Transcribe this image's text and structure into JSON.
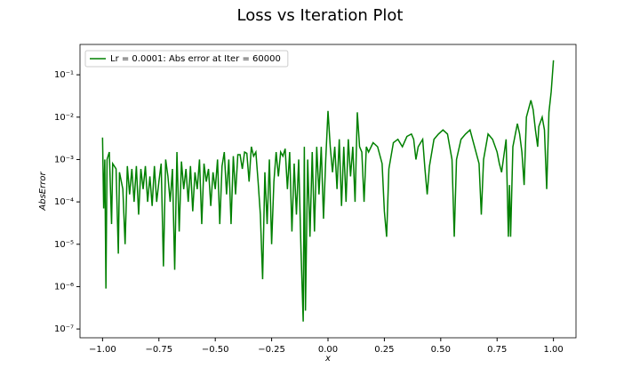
{
  "chart_data": {
    "type": "line",
    "title": "Loss vs Iteration Plot",
    "xlabel": "x",
    "ylabel": "AbsError",
    "log_y": true,
    "legend": "upper left",
    "xlim": [
      -1.1,
      1.1
    ],
    "ylim": [
      6.2e-08,
      0.52
    ],
    "xticks": [
      {
        "value": -1,
        "label": "−1.00"
      },
      {
        "value": -0.75,
        "label": "−0.75"
      },
      {
        "value": -0.5,
        "label": "−0.50"
      },
      {
        "value": -0.25,
        "label": "−0.25"
      },
      {
        "value": 0,
        "label": "0.00"
      },
      {
        "value": 0.25,
        "label": "0.25"
      },
      {
        "value": 0.5,
        "label": "0.50"
      },
      {
        "value": 0.75,
        "label": "0.75"
      },
      {
        "value": 1,
        "label": "1.00"
      }
    ],
    "yticks": [
      {
        "value": 1e-07,
        "label": "10⁻⁷"
      },
      {
        "value": 1e-06,
        "label": "10⁻⁶"
      },
      {
        "value": 1e-05,
        "label": "10⁻⁵"
      },
      {
        "value": 0.0001,
        "label": "10⁻⁴"
      },
      {
        "value": 0.001,
        "label": "10⁻³"
      },
      {
        "value": 0.01,
        "label": "10⁻²"
      },
      {
        "value": 0.1,
        "label": "10⁻¹"
      }
    ],
    "x": [
      -1.0,
      -0.995,
      -0.99,
      -0.985,
      -0.98,
      -0.97,
      -0.96,
      -0.955,
      -0.94,
      -0.93,
      -0.925,
      -0.91,
      -0.9,
      -0.89,
      -0.88,
      -0.87,
      -0.86,
      -0.85,
      -0.84,
      -0.83,
      -0.82,
      -0.81,
      -0.8,
      -0.79,
      -0.78,
      -0.77,
      -0.76,
      -0.75,
      -0.74,
      -0.73,
      -0.72,
      -0.71,
      -0.7,
      -0.69,
      -0.68,
      -0.67,
      -0.66,
      -0.65,
      -0.64,
      -0.63,
      -0.62,
      -0.61,
      -0.6,
      -0.59,
      -0.58,
      -0.57,
      -0.56,
      -0.55,
      -0.54,
      -0.53,
      -0.52,
      -0.51,
      -0.5,
      -0.49,
      -0.48,
      -0.47,
      -0.46,
      -0.45,
      -0.44,
      -0.43,
      -0.42,
      -0.41,
      -0.4,
      -0.39,
      -0.38,
      -0.37,
      -0.36,
      -0.35,
      -0.34,
      -0.33,
      -0.32,
      -0.31,
      -0.3,
      -0.29,
      -0.28,
      -0.27,
      -0.26,
      -0.25,
      -0.24,
      -0.23,
      -0.22,
      -0.21,
      -0.2,
      -0.19,
      -0.18,
      -0.17,
      -0.16,
      -0.15,
      -0.14,
      -0.13,
      -0.12,
      -0.11,
      -0.105,
      -0.1,
      -0.09,
      -0.08,
      -0.07,
      -0.06,
      -0.05,
      -0.04,
      -0.03,
      -0.02,
      -0.01,
      0.0,
      0.01,
      0.02,
      0.03,
      0.04,
      0.05,
      0.06,
      0.07,
      0.08,
      0.09,
      0.1,
      0.11,
      0.12,
      0.13,
      0.14,
      0.15,
      0.16,
      0.17,
      0.18,
      0.2,
      0.22,
      0.24,
      0.25,
      0.26,
      0.27,
      0.29,
      0.31,
      0.33,
      0.35,
      0.37,
      0.38,
      0.39,
      0.4,
      0.42,
      0.43,
      0.44,
      0.45,
      0.47,
      0.49,
      0.51,
      0.53,
      0.55,
      0.56,
      0.57,
      0.59,
      0.61,
      0.63,
      0.65,
      0.67,
      0.68,
      0.69,
      0.71,
      0.73,
      0.75,
      0.76,
      0.77,
      0.79,
      0.8,
      0.805,
      0.81,
      0.82,
      0.84,
      0.85,
      0.86,
      0.87,
      0.88,
      0.9,
      0.91,
      0.92,
      0.93,
      0.935,
      0.95,
      0.96,
      0.97,
      0.98,
      0.99,
      1.0
    ],
    "series": [
      {
        "name": "Lr = 0.0001: Abs error at Iter = 60000",
        "color": "#008000",
        "values": [
          0.0033,
          7e-05,
          0.001,
          9e-07,
          0.001,
          0.0015,
          3e-05,
          0.0008,
          0.0006,
          6e-06,
          0.0005,
          0.0002,
          1e-05,
          0.0007,
          0.00015,
          0.0006,
          0.0001,
          0.0007,
          5e-05,
          0.0006,
          0.0002,
          0.0007,
          0.0001,
          0.0004,
          8e-05,
          0.0007,
          0.0001,
          0.0003,
          0.0008,
          3e-06,
          0.001,
          0.0004,
          0.0001,
          0.0006,
          2.5e-06,
          0.0015,
          2e-05,
          0.0009,
          0.0002,
          0.0006,
          0.0001,
          0.0007,
          6e-05,
          0.0005,
          0.0002,
          0.001,
          3e-05,
          0.0008,
          0.0003,
          0.0006,
          8e-05,
          0.0005,
          0.0002,
          0.001,
          3e-05,
          0.0007,
          0.0015,
          0.00015,
          0.001,
          3e-05,
          0.0012,
          0.00015,
          0.0013,
          0.0013,
          0.0006,
          0.0015,
          0.0014,
          0.0003,
          0.002,
          0.0012,
          0.0015,
          0.0003,
          5e-05,
          1.5e-06,
          0.0005,
          3e-05,
          0.001,
          1e-05,
          0.0003,
          0.0015,
          0.0004,
          0.0015,
          0.0012,
          0.0018,
          0.0002,
          0.0015,
          2e-05,
          0.0008,
          5e-05,
          0.001,
          8e-06,
          1.5e-07,
          0.002,
          2.7e-07,
          0.001,
          1.5e-05,
          0.0015,
          2e-05,
          0.002,
          0.00015,
          0.002,
          4e-05,
          0.001,
          0.014,
          0.002,
          0.0005,
          0.002,
          0.0002,
          0.003,
          8e-05,
          0.002,
          0.0001,
          0.003,
          0.0004,
          0.002,
          0.0001,
          0.013,
          0.002,
          0.0015,
          0.0001,
          0.002,
          0.0015,
          0.0025,
          0.002,
          0.0008,
          6e-05,
          1.5e-05,
          0.0006,
          0.0025,
          0.003,
          0.002,
          0.0035,
          0.004,
          0.003,
          0.001,
          0.002,
          0.003,
          0.0006,
          0.00015,
          0.0007,
          0.003,
          0.004,
          0.005,
          0.004,
          0.001,
          1.5e-05,
          0.001,
          0.003,
          0.004,
          0.005,
          0.002,
          0.0008,
          5e-05,
          0.001,
          0.004,
          0.003,
          0.0015,
          0.0008,
          0.0005,
          0.003,
          1.5e-05,
          0.00025,
          1.5e-05,
          0.002,
          0.007,
          0.004,
          0.0015,
          0.00025,
          0.01,
          0.025,
          0.015,
          0.005,
          0.002,
          0.006,
          0.01,
          0.005,
          0.0002,
          0.013,
          0.04,
          0.22
        ]
      }
    ]
  }
}
